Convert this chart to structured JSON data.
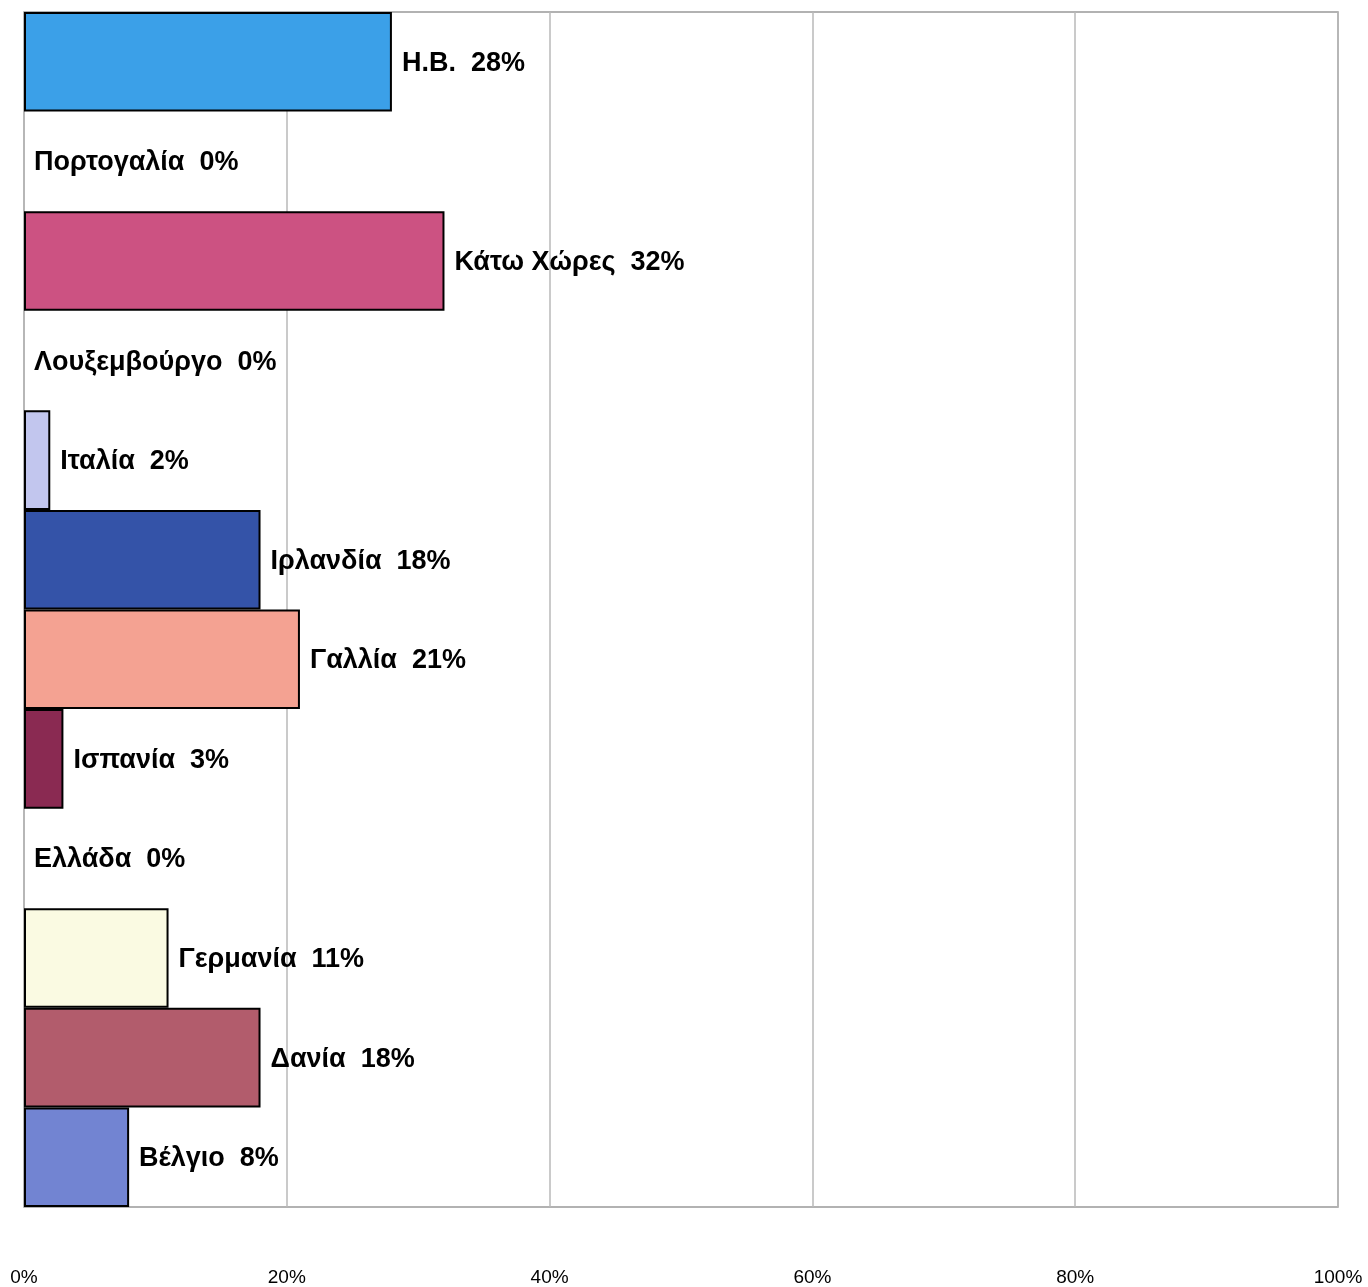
{
  "chart_data": {
    "type": "bar",
    "orientation": "horizontal",
    "categories": [
      "Η.Β.",
      "Πορτογαλία",
      "Κάτω Χώρες",
      "Λουξεμβούργο",
      "Ιταλία",
      "Ιρλανδία",
      "Γαλλία",
      "Ισπανία",
      "Ελλάδα",
      "Γερμανία",
      "Δανία",
      "Βέλγιο"
    ],
    "values": [
      28,
      0,
      32,
      0,
      2,
      18,
      21,
      3,
      0,
      11,
      18,
      8
    ],
    "value_labels": [
      "28%",
      "0%",
      "32%",
      "0%",
      "2%",
      "18%",
      "21%",
      "3%",
      "0%",
      "11%",
      "18%",
      "8%"
    ],
    "colors": [
      "#3ba0e8",
      null,
      "#cc5282",
      null,
      "#c2c6ee",
      "#3453a8",
      "#f4a292",
      "#8a2a52",
      null,
      "#fafae2",
      "#b25c6c",
      "#7284d2"
    ],
    "xlim": [
      0,
      100
    ],
    "xticks": [
      {
        "value": 0,
        "label": "0%"
      },
      {
        "value": 20,
        "label": "20%"
      },
      {
        "value": 40,
        "label": "40%"
      },
      {
        "value": 60,
        "label": "60%"
      },
      {
        "value": 80,
        "label": "80%"
      },
      {
        "value": 100,
        "label": "100%"
      }
    ],
    "grid": "x",
    "tick_labels": "x"
  }
}
